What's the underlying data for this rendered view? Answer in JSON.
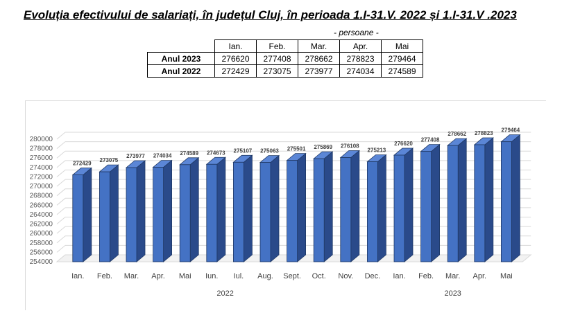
{
  "title": "Evoluția efectivului de salariați, în județul Cluj, în perioada 1.I-31.V. 2022 și 1.I-31.V .2023",
  "unit": "- persoane -",
  "table": {
    "headers": [
      "Ian.",
      "Feb.",
      "Mar.",
      "Apr.",
      "Mai"
    ],
    "rows": [
      {
        "label": "Anul 2023",
        "values": [
          "276620",
          "277408",
          "278662",
          "278823",
          "279464"
        ]
      },
      {
        "label": "Anul 2022",
        "values": [
          "272429",
          "273075",
          "273977",
          "274034",
          "274589"
        ]
      }
    ]
  },
  "chart_data": {
    "type": "bar",
    "style": "3d-column",
    "categories": [
      "Ian.",
      "Feb.",
      "Mar.",
      "Apr.",
      "Mai",
      "Iun.",
      "Iul.",
      "Aug.",
      "Sept.",
      "Oct.",
      "Nov.",
      "Dec.",
      "Ian.",
      "Feb.",
      "Mar.",
      "Apr.",
      "Mai"
    ],
    "groups": [
      {
        "label": "2022",
        "count": 12
      },
      {
        "label": "2023",
        "count": 5
      }
    ],
    "values": [
      272429,
      273075,
      273977,
      274034,
      274589,
      274673,
      275107,
      275063,
      275501,
      275869,
      276108,
      275213,
      276620,
      277408,
      278662,
      278823,
      279464
    ],
    "ylim": [
      254000,
      280000
    ],
    "yticks": [
      254000,
      256000,
      258000,
      260000,
      262000,
      264000,
      266000,
      268000,
      270000,
      272000,
      274000,
      276000,
      278000,
      280000
    ],
    "grid": true,
    "colors": {
      "front": "#4472c4",
      "side": "#2a4a8a",
      "top": "#5b86d6",
      "outline": "#1f3864"
    }
  }
}
